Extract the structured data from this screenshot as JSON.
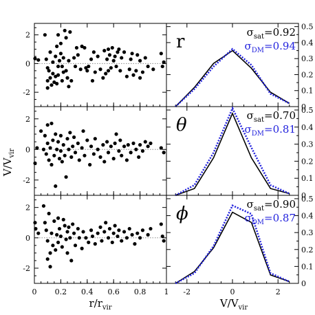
{
  "xlabel_left": "r/r",
  "xlabel_left_sub": "vir",
  "xlabel_right": "V/V",
  "xlabel_right_sub": "vir",
  "ylabel": "V/V",
  "ylabel_sub": "vir",
  "colors": {
    "sat": "#000000",
    "dm": "#2222dd",
    "zero_line": "#888888"
  },
  "scatter_axis": {
    "xlim": [
      0,
      1
    ],
    "ylim": [
      -3,
      2.8
    ],
    "xticks": [
      0,
      0.2,
      0.4,
      0.6,
      0.8,
      1
    ],
    "xtick_labels": [
      "0",
      "0.2",
      "0.4",
      "0.6",
      "0.8",
      "1"
    ],
    "yticks": [
      -2,
      0,
      2
    ],
    "ytick_labels": [
      "-2",
      "0",
      "2"
    ]
  },
  "dist_axis": {
    "xlim": [
      -2.9,
      2.9
    ],
    "ylim": [
      0,
      0.52
    ],
    "xticks": [
      -2,
      0,
      2
    ],
    "xtick_labels": [
      "-2",
      "0",
      "2"
    ],
    "yticks": [
      0,
      0.1,
      0.2,
      0.3,
      0.4,
      0.5
    ],
    "ytick_labels": [
      "0",
      "0.1",
      "0.2",
      "0.3",
      "0.4",
      "0.5"
    ]
  },
  "chart_data": [
    {
      "type": "scatter",
      "component": "r",
      "xlabel": "r/r_vir",
      "ylabel": "V/V_vir",
      "points": [
        [
          0.005,
          0.35
        ],
        [
          0.03,
          0.25
        ],
        [
          0.08,
          2.0
        ],
        [
          0.09,
          0.3
        ],
        [
          0.1,
          -0.3
        ],
        [
          0.1,
          -1.2
        ],
        [
          0.1,
          -1.7
        ],
        [
          0.11,
          -0.5
        ],
        [
          0.12,
          0.8
        ],
        [
          0.12,
          -1.0
        ],
        [
          0.13,
          -1.5
        ],
        [
          0.14,
          0.1
        ],
        [
          0.14,
          -0.7
        ],
        [
          0.15,
          -1.3
        ],
        [
          0.16,
          0.5
        ],
        [
          0.16,
          -0.9
        ],
        [
          0.17,
          1.2
        ],
        [
          0.17,
          -1.4
        ],
        [
          0.18,
          2.0
        ],
        [
          0.18,
          -0.2
        ],
        [
          0.18,
          -0.8
        ],
        [
          0.19,
          0.2
        ],
        [
          0.2,
          1.4
        ],
        [
          0.2,
          0.7
        ],
        [
          0.21,
          -1.2
        ],
        [
          0.21,
          -0.2
        ],
        [
          0.22,
          -0.6
        ],
        [
          0.22,
          0.4
        ],
        [
          0.23,
          2.3
        ],
        [
          0.24,
          1.8
        ],
        [
          0.24,
          -0.5
        ],
        [
          0.25,
          -1.0
        ],
        [
          0.26,
          0.2
        ],
        [
          0.26,
          -1.6
        ],
        [
          0.27,
          2.2
        ],
        [
          0.28,
          -1.2
        ],
        [
          0.3,
          0.4
        ],
        [
          0.31,
          -0.2
        ],
        [
          0.32,
          1.1
        ],
        [
          0.33,
          0.6
        ],
        [
          0.35,
          -0.4
        ],
        [
          0.36,
          1.2
        ],
        [
          0.38,
          1.1
        ],
        [
          0.39,
          -0.3
        ],
        [
          0.4,
          -0.5
        ],
        [
          0.41,
          -0.2
        ],
        [
          0.43,
          0.3
        ],
        [
          0.44,
          -1.2
        ],
        [
          0.45,
          0.8
        ],
        [
          0.46,
          -0.6
        ],
        [
          0.48,
          0.5
        ],
        [
          0.5,
          -0.4
        ],
        [
          0.52,
          -1.0
        ],
        [
          0.53,
          0.9
        ],
        [
          0.54,
          -0.7
        ],
        [
          0.55,
          0.3
        ],
        [
          0.56,
          1.0
        ],
        [
          0.56,
          -0.5
        ],
        [
          0.57,
          0.6
        ],
        [
          0.58,
          -0.3
        ],
        [
          0.59,
          1.1
        ],
        [
          0.6,
          0.2
        ],
        [
          0.61,
          0.5
        ],
        [
          0.62,
          -0.2
        ],
        [
          0.63,
          0.8
        ],
        [
          0.64,
          1.0
        ],
        [
          0.65,
          -0.5
        ],
        [
          0.66,
          0.4
        ],
        [
          0.68,
          0.8
        ],
        [
          0.7,
          -0.9
        ],
        [
          0.72,
          -0.4
        ],
        [
          0.73,
          0.3
        ],
        [
          0.74,
          0.7
        ],
        [
          0.75,
          -0.8
        ],
        [
          0.77,
          -0.5
        ],
        [
          0.78,
          0.6
        ],
        [
          0.8,
          0.2
        ],
        [
          0.8,
          -1.0
        ],
        [
          0.82,
          -0.6
        ],
        [
          0.84,
          0.4
        ],
        [
          0.86,
          -0.2
        ],
        [
          0.9,
          -0.4
        ],
        [
          0.96,
          0.7
        ],
        [
          0.97,
          -0.2
        ],
        [
          0.98,
          0.1
        ]
      ]
    },
    {
      "type": "line",
      "component": "r",
      "xlabel": "V/V_vir",
      "label": "r",
      "series": [
        {
          "name": "σ_sat=0.92",
          "sigma": "σ",
          "sub": "sat",
          "value": "=0.92",
          "x": [
            -2.5,
            -1.67,
            -0.83,
            0,
            0.83,
            1.67,
            2.5
          ],
          "y": [
            0.0,
            0.12,
            0.27,
            0.35,
            0.24,
            0.09,
            0.02
          ]
        },
        {
          "name": "σ_DM=0.94",
          "sigma": "σ",
          "sub": "DM",
          "value": "=0.94",
          "x": [
            -2.5,
            -1.67,
            -0.83,
            0,
            0.83,
            1.67,
            2.5
          ],
          "y": [
            0.0,
            0.11,
            0.25,
            0.36,
            0.26,
            0.08,
            0.02
          ]
        }
      ]
    },
    {
      "type": "scatter",
      "component": "theta",
      "xlabel": "r/r_vir",
      "ylabel": "V/V_vir",
      "points": [
        [
          0.005,
          -0.9
        ],
        [
          0.02,
          0.1
        ],
        [
          0.05,
          1.2
        ],
        [
          0.07,
          0.0
        ],
        [
          0.08,
          0.9
        ],
        [
          0.09,
          -0.3
        ],
        [
          0.1,
          1.6
        ],
        [
          0.1,
          0.4
        ],
        [
          0.11,
          -0.7
        ],
        [
          0.12,
          0.1
        ],
        [
          0.13,
          -1.0
        ],
        [
          0.13,
          1.7
        ],
        [
          0.14,
          0.6
        ],
        [
          0.15,
          -0.4
        ],
        [
          0.16,
          1.0
        ],
        [
          0.16,
          -2.4
        ],
        [
          0.17,
          0.0
        ],
        [
          0.18,
          0.5
        ],
        [
          0.19,
          -0.6
        ],
        [
          0.2,
          -0.1
        ],
        [
          0.2,
          0.9
        ],
        [
          0.21,
          -0.8
        ],
        [
          0.22,
          0.3
        ],
        [
          0.23,
          -0.4
        ],
        [
          0.24,
          -1.8
        ],
        [
          0.25,
          0.7
        ],
        [
          0.26,
          0.0
        ],
        [
          0.27,
          1.1
        ],
        [
          0.28,
          -0.5
        ],
        [
          0.29,
          0.2
        ],
        [
          0.3,
          0.8
        ],
        [
          0.31,
          -0.2
        ],
        [
          0.33,
          0.4
        ],
        [
          0.34,
          -0.7
        ],
        [
          0.36,
          0.1
        ],
        [
          0.37,
          1.2
        ],
        [
          0.38,
          -0.4
        ],
        [
          0.4,
          0.6
        ],
        [
          0.42,
          -1.0
        ],
        [
          0.43,
          0.2
        ],
        [
          0.45,
          -0.3
        ],
        [
          0.46,
          0.7
        ],
        [
          0.48,
          0.0
        ],
        [
          0.5,
          -0.5
        ],
        [
          0.52,
          0.3
        ],
        [
          0.53,
          -0.8
        ],
        [
          0.55,
          0.5
        ],
        [
          0.56,
          -0.2
        ],
        [
          0.58,
          0.2
        ],
        [
          0.6,
          -0.6
        ],
        [
          0.61,
          0.4
        ],
        [
          0.62,
          1.0
        ],
        [
          0.64,
          -0.1
        ],
        [
          0.65,
          0.6
        ],
        [
          0.66,
          -0.4
        ],
        [
          0.68,
          0.2
        ],
        [
          0.7,
          -0.7
        ],
        [
          0.71,
          0.3
        ],
        [
          0.73,
          -0.2
        ],
        [
          0.75,
          0.4
        ],
        [
          0.77,
          0.0
        ],
        [
          0.79,
          -0.5
        ],
        [
          0.8,
          0.3
        ],
        [
          0.82,
          -0.1
        ],
        [
          0.84,
          0.5
        ],
        [
          0.86,
          0.2
        ],
        [
          0.88,
          0.4
        ],
        [
          0.96,
          0.1
        ],
        [
          0.98,
          -0.2
        ]
      ]
    },
    {
      "type": "line",
      "component": "theta",
      "xlabel": "V/V_vir",
      "label": "θ",
      "series": [
        {
          "name": "σ_sat=0.70",
          "sigma": "σ",
          "sub": "sat",
          "value": "=0.70",
          "x": [
            -2.5,
            -1.67,
            -0.83,
            0,
            0.83,
            1.67,
            2.5
          ],
          "y": [
            0.0,
            0.04,
            0.22,
            0.48,
            0.22,
            0.04,
            0.01
          ]
        },
        {
          "name": "σ_DM=0.81",
          "sigma": "σ",
          "sub": "DM",
          "value": "=0.81",
          "x": [
            -2.5,
            -1.67,
            -0.83,
            0,
            0.83,
            1.67,
            2.5
          ],
          "y": [
            0.0,
            0.06,
            0.25,
            0.51,
            0.28,
            0.06,
            0.01
          ]
        }
      ]
    },
    {
      "type": "scatter",
      "component": "phi",
      "xlabel": "r/r_vir",
      "ylabel": "V/V_vir",
      "points": [
        [
          0.005,
          1.0
        ],
        [
          0.01,
          0.6
        ],
        [
          0.03,
          0.3
        ],
        [
          0.07,
          2.1
        ],
        [
          0.08,
          1.0
        ],
        [
          0.09,
          0.5
        ],
        [
          0.1,
          -0.2
        ],
        [
          0.1,
          -1.4
        ],
        [
          0.11,
          1.6
        ],
        [
          0.12,
          -1.0
        ],
        [
          0.12,
          -1.9
        ],
        [
          0.13,
          0.3
        ],
        [
          0.14,
          -0.5
        ],
        [
          0.15,
          1.1
        ],
        [
          0.16,
          -0.8
        ],
        [
          0.17,
          0.2
        ],
        [
          0.18,
          1.3
        ],
        [
          0.18,
          -0.3
        ],
        [
          0.19,
          0.6
        ],
        [
          0.2,
          0.1
        ],
        [
          0.21,
          -0.6
        ],
        [
          0.22,
          1.2
        ],
        [
          0.23,
          0.8
        ],
        [
          0.24,
          -0.1
        ],
        [
          0.25,
          0.4
        ],
        [
          0.25,
          -1.0
        ],
        [
          0.26,
          0.7
        ],
        [
          0.27,
          0.0
        ],
        [
          0.28,
          -1.5
        ],
        [
          0.29,
          0.9
        ],
        [
          0.3,
          0.3
        ],
        [
          0.31,
          -0.5
        ],
        [
          0.33,
          0.6
        ],
        [
          0.34,
          0.0
        ],
        [
          0.36,
          -0.7
        ],
        [
          0.37,
          0.4
        ],
        [
          0.39,
          0.0
        ],
        [
          0.41,
          -0.3
        ],
        [
          0.43,
          0.5
        ],
        [
          0.44,
          0.1
        ],
        [
          0.46,
          -0.4
        ],
        [
          0.48,
          0.3
        ],
        [
          0.5,
          0.7
        ],
        [
          0.51,
          -0.2
        ],
        [
          0.53,
          0.4
        ],
        [
          0.54,
          1.0
        ],
        [
          0.56,
          0.0
        ],
        [
          0.57,
          0.6
        ],
        [
          0.59,
          -0.3
        ],
        [
          0.6,
          0.3
        ],
        [
          0.61,
          0.8
        ],
        [
          0.63,
          0.1
        ],
        [
          0.64,
          0.5
        ],
        [
          0.66,
          -0.2
        ],
        [
          0.68,
          0.4
        ],
        [
          0.7,
          0.0
        ],
        [
          0.72,
          0.6
        ],
        [
          0.74,
          0.2
        ],
        [
          0.76,
          -0.4
        ],
        [
          0.78,
          0.3
        ],
        [
          0.8,
          0.0
        ],
        [
          0.82,
          0.5
        ],
        [
          0.86,
          0.2
        ],
        [
          0.88,
          0.6
        ],
        [
          0.96,
          0.9
        ],
        [
          0.97,
          0.1
        ],
        [
          0.98,
          -0.2
        ]
      ]
    },
    {
      "type": "line",
      "component": "phi",
      "xlabel": "V/V_vir",
      "label": "ϕ",
      "series": [
        {
          "name": "σ_sat=0.90",
          "sigma": "σ",
          "sub": "sat",
          "value": "=0.90",
          "x": [
            -2.5,
            -1.67,
            -0.83,
            0,
            0.83,
            1.67,
            2.5
          ],
          "y": [
            0.0,
            0.07,
            0.21,
            0.42,
            0.36,
            0.05,
            0.01
          ]
        },
        {
          "name": "σ_DM=0.87",
          "sigma": "σ",
          "sub": "DM",
          "value": "=0.87",
          "x": [
            -2.5,
            -1.67,
            -0.83,
            0,
            0.83,
            1.67,
            2.5
          ],
          "y": [
            0.0,
            0.06,
            0.22,
            0.46,
            0.41,
            0.06,
            0.01
          ]
        }
      ]
    }
  ]
}
